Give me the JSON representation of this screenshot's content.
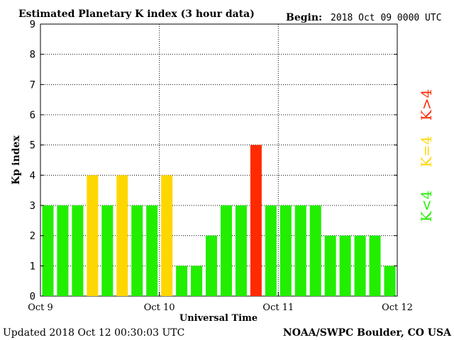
{
  "header": {
    "title": "Estimated Planetary K index (3 hour data)",
    "begin_label": "Begin:",
    "begin_value": "2018 Oct 09 0000 UTC"
  },
  "footer": {
    "updated": "Updated 2018 Oct 12 00:30:03 UTC",
    "source": "NOAA/SWPC Boulder, CO USA"
  },
  "legend": {
    "below4": "K<4",
    "equal4": "K=4",
    "above4": "K>4"
  },
  "colors": {
    "below4": "#22ee00",
    "equal4": "#ffd700",
    "above4": "#ff2a00"
  },
  "chart_data": {
    "type": "bar",
    "title": "Estimated Planetary K index (3 hour data)",
    "xlabel": "Universal Time",
    "ylabel": "Kp index",
    "ylim": [
      0,
      9
    ],
    "yticks": [
      "0",
      "1",
      "2",
      "3",
      "4",
      "5",
      "6",
      "7",
      "8",
      "9"
    ],
    "xticks": [
      "Oct 9",
      "Oct 10",
      "Oct 11",
      "Oct 12"
    ],
    "interval_hours": 3,
    "values": [
      3,
      3,
      3,
      4,
      3,
      4,
      3,
      3,
      4,
      1,
      1,
      2,
      3,
      3,
      5,
      3,
      3,
      3,
      3,
      2,
      2,
      2,
      2,
      1
    ],
    "grid": true
  }
}
